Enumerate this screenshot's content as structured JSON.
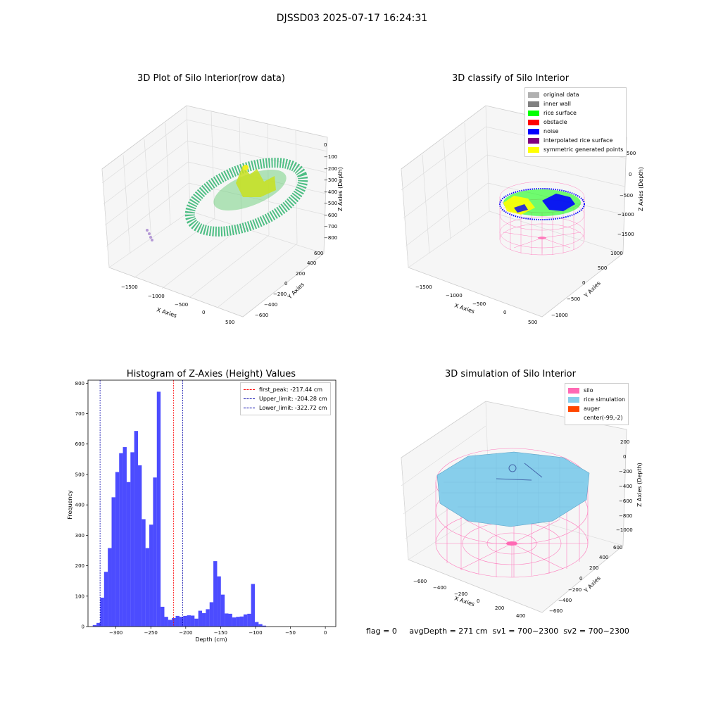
{
  "figure": {
    "suptitle": "DJSSD03 2025-07-17 16:24:31",
    "footer": "flag = 0     avgDepth = 271 cm  sv1 = 700~2300  sv2 = 700~2300"
  },
  "colors": {
    "original": "#b0b0b0",
    "inner_wall": "#808080",
    "rice_surface": "#00ff00",
    "obstacle": "#ff0000",
    "noise": "#0000ff",
    "interpolated": "#800080",
    "symmetric": "#ffff00",
    "silo": "#ff69b4",
    "rice_sim": "#87ceeb",
    "auger": "#ff4500",
    "hist_bar": "#0000ff"
  },
  "panel1": {
    "title": "3D Plot of Silo Interior(row data)",
    "xlabel": "X Axies",
    "ylabel": "Y Axies",
    "zlabel": "Z Axies (Depth)",
    "xticks": [
      "−1500",
      "−1000",
      "−500",
      "0",
      "500"
    ],
    "yticks": [
      "−600",
      "−400",
      "−200",
      "0",
      "200",
      "400",
      "600"
    ],
    "zticks": [
      "0",
      "−100",
      "−200",
      "−300",
      "−400",
      "−500",
      "−600",
      "−700",
      "−800"
    ]
  },
  "panel2": {
    "title": "3D classify of Silo Interior",
    "xlabel": "X Axies",
    "ylabel": "Y Axies",
    "zlabel": "Z Axies (Depth)",
    "xticks": [
      "−1500",
      "−1000",
      "−500",
      "0",
      "500"
    ],
    "yticks": [
      "−1000",
      "−500",
      "0",
      "500",
      "1000"
    ],
    "zticks": [
      "500",
      "0",
      "−500",
      "−1000",
      "−1500"
    ],
    "legend": [
      {
        "label": "original data",
        "color": "#b0b0b0"
      },
      {
        "label": "inner wall",
        "color": "#808080"
      },
      {
        "label": "rice surface",
        "color": "#00ff00"
      },
      {
        "label": "obstacle",
        "color": "#ff0000"
      },
      {
        "label": "noise",
        "color": "#0000ff"
      },
      {
        "label": "interpolated rice surface",
        "color": "#800080"
      },
      {
        "label": "symmetric generated points",
        "color": "#ffff00"
      }
    ]
  },
  "panel4": {
    "title": "3D simulation of Silo Interior",
    "xlabel": "X Axies",
    "ylabel": "Y Axies",
    "zlabel": "Z Axies (Depth)",
    "xticks": [
      "−600",
      "−400",
      "−200",
      "0",
      "200",
      "400"
    ],
    "yticks": [
      "−600",
      "−400",
      "−200",
      "0",
      "200",
      "400",
      "600"
    ],
    "zticks": [
      "200",
      "0",
      "−200",
      "−400",
      "−600",
      "−800",
      "−1000"
    ],
    "legend": [
      {
        "label": "silo",
        "color": "#ff69b4"
      },
      {
        "label": "rice simulation",
        "color": "#87ceeb"
      },
      {
        "label": "auger",
        "color": "#ff4500"
      },
      {
        "label": "center(-99,-2)",
        "color": "none"
      }
    ]
  },
  "chart_data": {
    "type": "bar",
    "title": "Histogram of Z-Axies (Height) Values",
    "xlabel": "Depth (cm)",
    "ylabel": "Frequency",
    "xlim": [
      -340,
      15
    ],
    "ylim": [
      0,
      810
    ],
    "xticks": [
      -300,
      -250,
      -200,
      -150,
      -100,
      -50,
      0
    ],
    "yticks": [
      0,
      100,
      200,
      300,
      400,
      500,
      600,
      700,
      800
    ],
    "bin_width": 5.4,
    "bins": [
      {
        "x": -330.5,
        "value": 5
      },
      {
        "x": -325.1,
        "value": 12
      },
      {
        "x": -319.7,
        "value": 95
      },
      {
        "x": -314.3,
        "value": 180
      },
      {
        "x": -308.9,
        "value": 258
      },
      {
        "x": -303.5,
        "value": 425
      },
      {
        "x": -298.1,
        "value": 508
      },
      {
        "x": -292.7,
        "value": 570
      },
      {
        "x": -287.3,
        "value": 590
      },
      {
        "x": -281.9,
        "value": 475
      },
      {
        "x": -276.5,
        "value": 573
      },
      {
        "x": -271.1,
        "value": 643
      },
      {
        "x": -265.7,
        "value": 530
      },
      {
        "x": -260.3,
        "value": 353
      },
      {
        "x": -254.9,
        "value": 258
      },
      {
        "x": -249.5,
        "value": 335
      },
      {
        "x": -244.1,
        "value": 490
      },
      {
        "x": -238.7,
        "value": 772
      },
      {
        "x": -233.3,
        "value": 65
      },
      {
        "x": -227.9,
        "value": 32
      },
      {
        "x": -222.5,
        "value": 22
      },
      {
        "x": -217.1,
        "value": 28
      },
      {
        "x": -211.7,
        "value": 35
      },
      {
        "x": -206.3,
        "value": 32
      },
      {
        "x": -200.9,
        "value": 35
      },
      {
        "x": -195.5,
        "value": 37
      },
      {
        "x": -190.1,
        "value": 36
      },
      {
        "x": -184.7,
        "value": 26
      },
      {
        "x": -179.3,
        "value": 52
      },
      {
        "x": -173.9,
        "value": 44
      },
      {
        "x": -168.5,
        "value": 57
      },
      {
        "x": -163.1,
        "value": 80
      },
      {
        "x": -157.7,
        "value": 215
      },
      {
        "x": -152.3,
        "value": 165
      },
      {
        "x": -146.9,
        "value": 105
      },
      {
        "x": -141.5,
        "value": 43
      },
      {
        "x": -136.1,
        "value": 42
      },
      {
        "x": -130.7,
        "value": 30
      },
      {
        "x": -125.3,
        "value": 32
      },
      {
        "x": -119.9,
        "value": 33
      },
      {
        "x": -114.5,
        "value": 40
      },
      {
        "x": -109.1,
        "value": 42
      },
      {
        "x": -103.7,
        "value": 140
      },
      {
        "x": -98.3,
        "value": 15
      },
      {
        "x": -92.9,
        "value": 8
      },
      {
        "x": -87.5,
        "value": 3
      }
    ],
    "vlines": [
      {
        "label": "first_peak: -217.44 cm",
        "x": -217.44,
        "color": "#ff0000"
      },
      {
        "label": "Upper_limit: -204.28 cm",
        "x": -204.28,
        "color": "#0000aa"
      },
      {
        "label": "Lower_limit: -322.72 cm",
        "x": -322.72,
        "color": "#0000aa"
      }
    ],
    "legend_position": "top-right"
  }
}
